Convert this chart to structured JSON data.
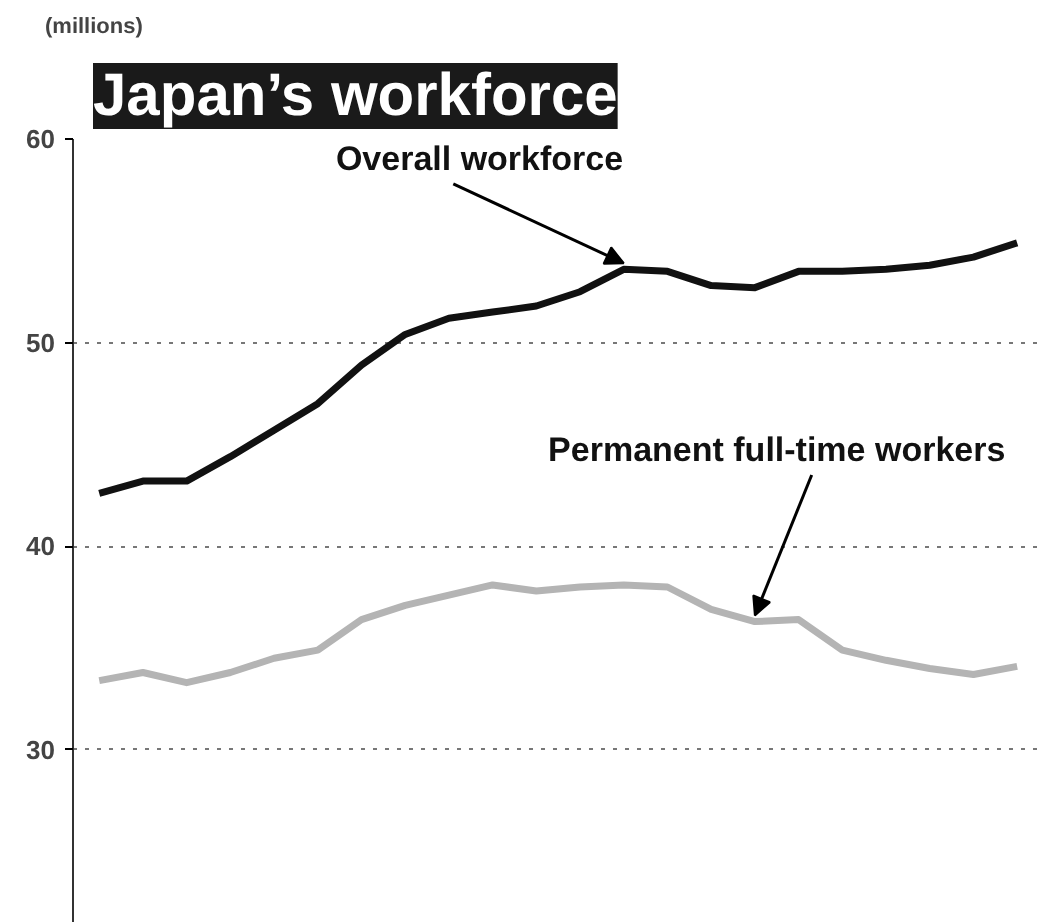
{
  "chart_data": {
    "type": "line",
    "title": "Japan’s workforce",
    "ylabel": "(millions)",
    "categories": [
      null,
      null,
      null,
      null,
      null,
      null,
      null,
      null,
      null,
      null,
      null,
      null,
      null,
      null,
      null,
      null,
      null,
      null,
      null,
      null,
      null,
      null
    ],
    "series": [
      {
        "name": "Overall workforce",
        "color": "#111111",
        "values": [
          42.6,
          43.2,
          43.2,
          44.4,
          45.7,
          47.0,
          48.9,
          50.4,
          51.2,
          51.5,
          51.8,
          52.5,
          53.6,
          53.5,
          52.8,
          52.7,
          53.5,
          53.5,
          53.6,
          53.8,
          54.2,
          54.9
        ]
      },
      {
        "name": "Permanent full-time workers",
        "color": "#b4b4b4",
        "values": [
          33.4,
          33.8,
          33.3,
          33.8,
          34.5,
          34.9,
          36.4,
          37.1,
          37.6,
          38.1,
          37.8,
          38.0,
          38.1,
          38.0,
          36.9,
          36.3,
          36.4,
          34.9,
          34.4,
          34.0,
          33.7,
          34.1
        ]
      }
    ],
    "ylim": [
      21.5,
      60
    ],
    "yticks": [
      30,
      40,
      50,
      60
    ],
    "grid": "y",
    "marker": "none",
    "line_style": "solid"
  }
}
